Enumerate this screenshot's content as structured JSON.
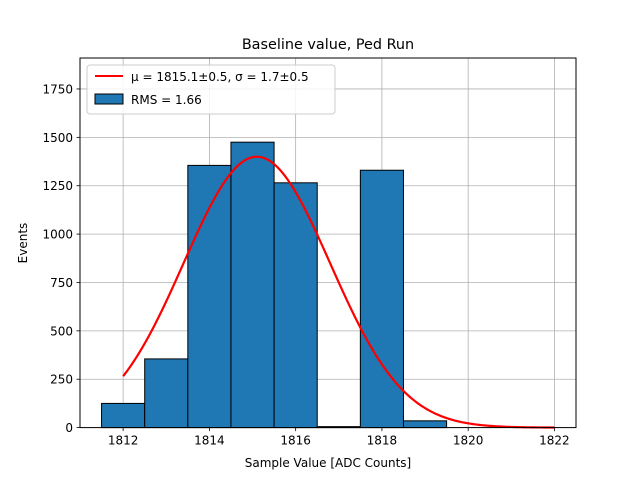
{
  "chart_data": {
    "type": "bar",
    "title": "Baseline value, Ped Run",
    "xlabel": "Sample Value [ADC Counts]",
    "ylabel": "Events",
    "xlim": [
      1811.0,
      1822.5
    ],
    "ylim": [
      0,
      1910
    ],
    "grid": true,
    "legend_position": "top-left",
    "x_ticks": [
      1812,
      1814,
      1816,
      1818,
      1820,
      1822
    ],
    "y_ticks": [
      0,
      250,
      500,
      750,
      1000,
      1250,
      1500,
      1750
    ],
    "histogram": {
      "name": "RMS = 1.66",
      "bin_edges": [
        1811.5,
        1812.5,
        1813.5,
        1814.5,
        1815.5,
        1816.5,
        1817.5,
        1818.5,
        1819.5
      ],
      "counts": [
        125,
        355,
        1355,
        1475,
        1265,
        5,
        1330,
        35
      ],
      "color": "#1f77b4"
    },
    "fit": {
      "name": "μ = 1815.1±0.5, σ = 1.7±0.5",
      "mu": 1815.1,
      "sigma": 1.7,
      "amplitude": 1400,
      "x_range": [
        1812,
        1822
      ],
      "color": "#ff0000"
    }
  }
}
